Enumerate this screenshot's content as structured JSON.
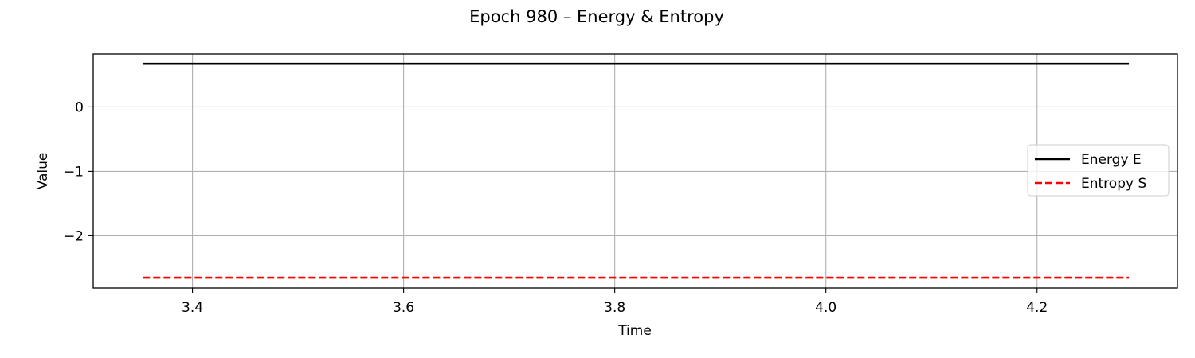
{
  "chart_data": {
    "type": "line",
    "title": "Epoch 980 – Energy & Entropy",
    "xlabel": "Time",
    "ylabel": "Value",
    "xlim": [
      3.306,
      4.333
    ],
    "ylim": [
      -2.81,
      0.82
    ],
    "xticks": [
      3.4,
      3.6,
      3.8,
      4.0,
      4.2
    ],
    "xtick_labels": [
      "3.4",
      "3.6",
      "3.8",
      "4.0",
      "4.2"
    ],
    "yticks": [
      0,
      -1,
      -2
    ],
    "ytick_labels": [
      "0",
      "−1",
      "−2"
    ],
    "grid": true,
    "legend_position": "center-right",
    "series": [
      {
        "name": "Energy E",
        "color": "#000000",
        "style": "solid",
        "x": [
          3.353,
          4.287
        ],
        "y": [
          0.67,
          0.67
        ]
      },
      {
        "name": "Entropy S",
        "color": "#ff0000",
        "style": "dashed",
        "x": [
          3.353,
          4.287
        ],
        "y": [
          -2.65,
          -2.65
        ]
      }
    ]
  }
}
